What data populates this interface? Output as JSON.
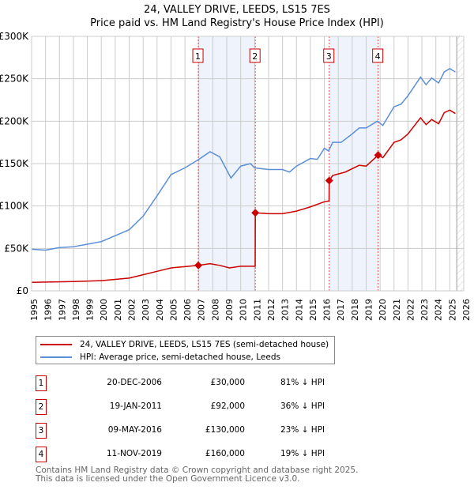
{
  "chart_data": {
    "type": "line",
    "title": "24, VALLEY DRIVE, LEEDS, LS15 7ES",
    "subtitle": "Price paid vs. HM Land Registry's House Price Index (HPI)",
    "xlim": [
      1995,
      2026
    ],
    "ylim": [
      0,
      300000
    ],
    "x_ticks": [
      "1995",
      "1996",
      "1997",
      "1998",
      "1999",
      "2000",
      "2001",
      "2002",
      "2003",
      "2004",
      "2005",
      "2006",
      "2007",
      "2008",
      "2009",
      "2010",
      "2011",
      "2012",
      "2013",
      "2014",
      "2015",
      "2016",
      "2017",
      "2018",
      "2019",
      "2020",
      "2021",
      "2022",
      "2023",
      "2024",
      "2025",
      "2026"
    ],
    "y_ticks": [
      {
        "v": 0,
        "label": "£0"
      },
      {
        "v": 50000,
        "label": "£50K"
      },
      {
        "v": 100000,
        "label": "£100K"
      },
      {
        "v": 150000,
        "label": "£150K"
      },
      {
        "v": 200000,
        "label": "£200K"
      },
      {
        "v": 250000,
        "label": "£250K"
      },
      {
        "v": 300000,
        "label": "£300K"
      }
    ],
    "grid": true,
    "series": [
      {
        "name": "24, VALLEY DRIVE, LEEDS, LS15 7ES (semi-detached house)",
        "color": "#cc0000",
        "x": [
          1995,
          1998,
          2000,
          2002,
          2003,
          2004,
          2005,
          2006.96,
          2007.8,
          2008.5,
          2009.2,
          2010,
          2011.04,
          2011.05,
          2012,
          2013,
          2014,
          2015,
          2016,
          2016.34,
          2016.35,
          2016.6,
          2017.5,
          2018.5,
          2019,
          2019.86,
          2020.2,
          2021,
          2021.5,
          2022,
          2022.9,
          2023.3,
          2023.7,
          2024.2,
          2024.6,
          2025,
          2025.4
        ],
        "y": [
          10000,
          11000,
          12000,
          15000,
          19000,
          23000,
          27000,
          30000,
          32000,
          30000,
          27000,
          29000,
          29000,
          92000,
          91000,
          91000,
          94000,
          99000,
          105000,
          106000,
          130000,
          136000,
          140000,
          148000,
          147000,
          160000,
          157000,
          175000,
          178000,
          185000,
          204000,
          196000,
          202000,
          197000,
          210000,
          213000,
          209000
        ]
      },
      {
        "name": "HPI: Average price, semi-detached house, Leeds",
        "color": "#5b8fd6",
        "x": [
          1995,
          1996,
          1997,
          1998,
          1999,
          2000,
          2001,
          2002,
          2003,
          2004,
          2005,
          2006,
          2007,
          2007.8,
          2008.5,
          2009.3,
          2010,
          2010.7,
          2011,
          2012,
          2013,
          2013.5,
          2014,
          2015,
          2015.5,
          2016,
          2016.3,
          2016.6,
          2017.2,
          2018,
          2018.5,
          2019,
          2019.8,
          2020.2,
          2021,
          2021.5,
          2022,
          2022.9,
          2023.3,
          2023.7,
          2024.2,
          2024.6,
          2025,
          2025.4
        ],
        "y": [
          49000,
          48000,
          51000,
          52000,
          55000,
          58000,
          65000,
          72000,
          88000,
          112000,
          137000,
          145000,
          155000,
          164000,
          158000,
          133000,
          147000,
          150000,
          145000,
          143000,
          143000,
          140000,
          147000,
          156000,
          155000,
          168000,
          165000,
          175000,
          175000,
          185000,
          192000,
          192000,
          200000,
          195000,
          217000,
          220000,
          230000,
          252000,
          243000,
          251000,
          245000,
          258000,
          262000,
          258000
        ]
      }
    ],
    "sales": [
      {
        "n": "1",
        "x": 2006.96,
        "y": 30000,
        "date": "20-DEC-2006",
        "price": "£30,000",
        "pct": "81% ↓ HPI"
      },
      {
        "n": "2",
        "x": 2011.05,
        "y": 92000,
        "date": "19-JAN-2011",
        "price": "£92,000",
        "pct": "36% ↓ HPI"
      },
      {
        "n": "3",
        "x": 2016.35,
        "y": 130000,
        "date": "09-MAY-2016",
        "price": "£130,000",
        "pct": "23% ↓ HPI"
      },
      {
        "n": "4",
        "x": 2019.86,
        "y": 160000,
        "date": "11-NOV-2019",
        "price": "£160,000",
        "pct": "19% ↓ HPI"
      }
    ],
    "shaded": [
      [
        2006.96,
        2011.05
      ],
      [
        2016.35,
        2019.86
      ]
    ],
    "future_from": 2025.5
  },
  "footer": [
    "Contains HM Land Registry data © Crown copyright and database right 2025.",
    "This data is licensed under the Open Government Licence v3.0."
  ]
}
